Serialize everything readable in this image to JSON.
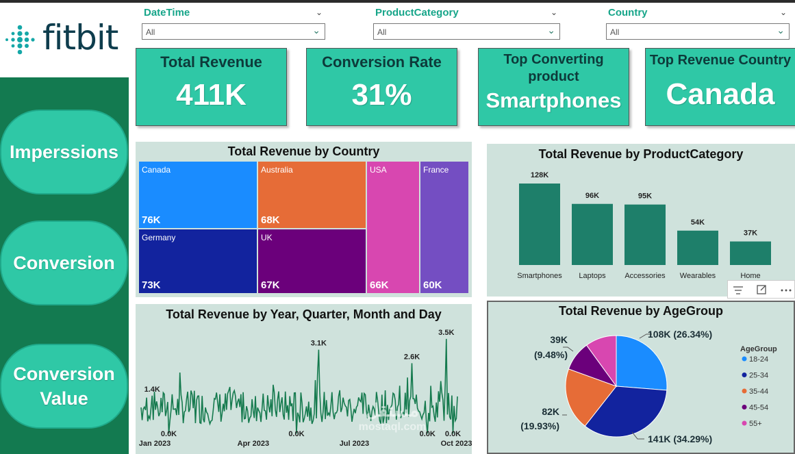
{
  "brand": {
    "name": "fitbit"
  },
  "nav": {
    "impressions": "Imperssions",
    "conversion": "Conversion",
    "conversion_value_1": "Conversion",
    "conversion_value_2": "Value"
  },
  "filters": [
    {
      "label": "DateTime",
      "value": "All"
    },
    {
      "label": "ProductCategory",
      "value": "All"
    },
    {
      "label": "Country",
      "value": "All"
    }
  ],
  "kpis": {
    "total_revenue": {
      "title": "Total Revenue",
      "value": "411K"
    },
    "conversion_rate": {
      "title": "Conversion Rate",
      "value": "31%"
    },
    "top_product": {
      "title_1": "Top Converting",
      "title_2": "product",
      "value": "Smartphones"
    },
    "top_country": {
      "title": "Top Revenue Country",
      "value": "Canada"
    }
  },
  "colors": {
    "accent": "#2fc8a6",
    "sidebar": "#137a50",
    "panel": "#cfe2dc",
    "bar": "#1e7f6a",
    "line": "#157a4e"
  },
  "watermark": {
    "text_1": "مستقل",
    "text_2": "mostaql.com"
  },
  "chart_data": [
    {
      "type": "treemap",
      "title": "Total Revenue by Country",
      "items": [
        {
          "label": "Canada",
          "value": 76,
          "display": "76K",
          "color": "#1a8cff"
        },
        {
          "label": "Australia",
          "value": 68,
          "display": "68K",
          "color": "#e66c37"
        },
        {
          "label": "USA",
          "value": 66,
          "display": "66K",
          "color": "#d847b0"
        },
        {
          "label": "France",
          "value": 60,
          "display": "60K",
          "color": "#744ec2"
        },
        {
          "label": "Germany",
          "value": 73,
          "display": "73K",
          "color": "#12239e"
        },
        {
          "label": "UK",
          "value": 67,
          "display": "67K",
          "color": "#6b007b"
        }
      ]
    },
    {
      "type": "bar",
      "title": "Total Revenue by ProductCategory",
      "categories": [
        "Smartphones",
        "Laptops",
        "Accessories",
        "Wearables",
        "Home"
      ],
      "values": [
        128,
        96,
        95,
        54,
        37
      ],
      "value_labels": [
        "128K",
        "96K",
        "95K",
        "54K",
        "37K"
      ],
      "ylim": [
        0,
        140
      ]
    },
    {
      "type": "line",
      "title": "Total Revenue by Year, Quarter, Month and Day",
      "x_ticks": [
        "Jan 2023",
        "Apr 2023",
        "Jul 2023",
        "Oct 2023"
      ],
      "annotations": [
        {
          "label": "1.4K",
          "day": 10,
          "value": 1.4
        },
        {
          "label": "0.0K",
          "day": 25,
          "value": 0.0
        },
        {
          "label": "3.1K",
          "day": 160,
          "value": 3.1
        },
        {
          "label": "0.0K",
          "day": 140,
          "value": 0.0
        },
        {
          "label": "2.6K",
          "day": 244,
          "value": 2.6
        },
        {
          "label": "0.0K",
          "day": 258,
          "value": 0.0
        },
        {
          "label": "3.5K",
          "day": 275,
          "value": 3.5
        },
        {
          "label": "0.0K",
          "day": 281,
          "value": 0.0
        }
      ],
      "ylim": [
        0,
        3.6
      ],
      "x_range_days": [
        0,
        285
      ]
    },
    {
      "type": "pie",
      "title": "Total Revenue by AgeGroup",
      "legend_title": "AgeGroup",
      "legend_position": "right",
      "slices": [
        {
          "label": "18-24",
          "value": 108,
          "percent": 26.34,
          "display": "108K (26.34%)",
          "color": "#1a8cff"
        },
        {
          "label": "25-34",
          "value": 141,
          "percent": 34.29,
          "display": "141K (34.29%)",
          "color": "#12239e"
        },
        {
          "label": "35-44",
          "value": 82,
          "percent": 19.93,
          "display_1": "82K",
          "display_2": "(19.93%)",
          "color": "#e66c37"
        },
        {
          "label": "45-54",
          "value": 39,
          "percent": 9.48,
          "display_1": "39K",
          "display_2": "(9.48%)",
          "color": "#6b007b"
        },
        {
          "label": "55+",
          "value": 41,
          "percent": 9.96,
          "color": "#d847b0"
        }
      ]
    }
  ]
}
